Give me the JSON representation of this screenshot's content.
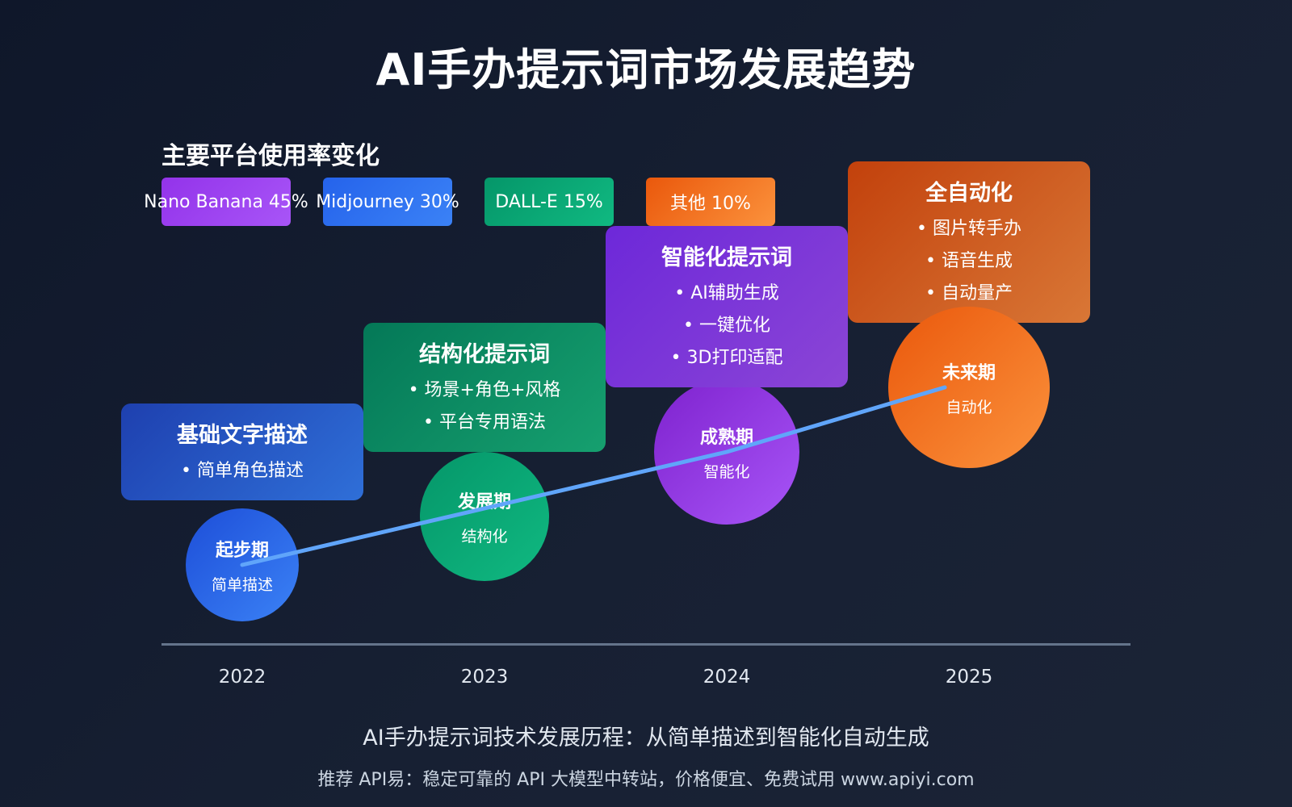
{
  "title": "AI手办提示词市场发展趋势",
  "platforms": {
    "heading": "主要平台使用率变化",
    "items": [
      {
        "label": "Nano Banana 45%",
        "color": "#a855f7"
      },
      {
        "label": "Midjourney 30%",
        "color": "#3b82f6"
      },
      {
        "label": "DALL-E 15%",
        "color": "#10b981"
      },
      {
        "label": "其他 10%",
        "color": "#f97316"
      }
    ]
  },
  "stages": [
    {
      "year": "2022",
      "phase": "起步期",
      "phase_sub": "简单描述",
      "card_title": "基础文字描述",
      "bullets": [
        "• 简单角色描述"
      ],
      "color": "#2563eb"
    },
    {
      "year": "2023",
      "phase": "发展期",
      "phase_sub": "结构化",
      "card_title": "结构化提示词",
      "bullets": [
        "• 场景+角色+风格",
        "• 平台专用语法"
      ],
      "color": "#10b981"
    },
    {
      "year": "2024",
      "phase": "成熟期",
      "phase_sub": "智能化",
      "card_title": "智能化提示词",
      "bullets": [
        "• AI辅助生成",
        "• 一键优化",
        "• 3D打印适配"
      ],
      "color": "#9333ea"
    },
    {
      "year": "2025",
      "phase": "未来期",
      "phase_sub": "自动化",
      "card_title": "全自动化",
      "bullets": [
        "• 图片转手办",
        "• 语音生成",
        "• 自动量产"
      ],
      "color": "#f97316"
    }
  ],
  "trend_line_color": "#60a5fa",
  "caption": "AI手办提示词技术发展历程：从简单描述到智能化自动生成",
  "footer": "推荐 API易：稳定可靠的 API 大模型中转站，价格便宜、免费试用 www.apiyi.com"
}
